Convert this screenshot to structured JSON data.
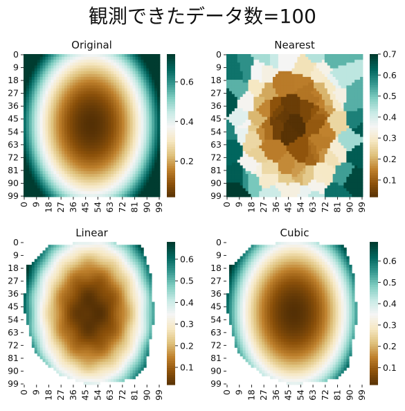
{
  "suptitle": "観測できたデータ数=100",
  "chart_data": [
    {
      "type": "heatmap",
      "title": "Original",
      "colormap": "BrBG",
      "grid_shape": [
        100,
        100
      ],
      "xticks": [
        "0",
        "9",
        "18",
        "27",
        "36",
        "45",
        "54",
        "63",
        "72",
        "81",
        "90",
        "99"
      ],
      "yticks": [
        "0",
        "9",
        "18",
        "27",
        "36",
        "45",
        "54",
        "63",
        "72",
        "81",
        "90",
        "99"
      ],
      "colorbar": {
        "range": [
          0.02,
          0.74
        ],
        "ticks": [
          0.2,
          0.4,
          0.6
        ]
      },
      "field": {
        "cx": 49.5,
        "cy": 49.5,
        "ax": 52,
        "ay": 68,
        "min": 0.02,
        "max": 0.74
      }
    },
    {
      "type": "heatmap",
      "title": "Nearest",
      "colormap": "BrBG",
      "grid_shape": [
        100,
        100
      ],
      "xticks": [
        "0",
        "9",
        "18",
        "27",
        "36",
        "45",
        "54",
        "63",
        "72",
        "81",
        "90",
        "99"
      ],
      "yticks": [
        "0",
        "9",
        "18",
        "27",
        "36",
        "45",
        "54",
        "63",
        "72",
        "81",
        "90",
        "99"
      ],
      "colorbar": {
        "range": [
          0.02,
          0.7
        ],
        "ticks": [
          0.1,
          0.2,
          0.3,
          0.4,
          0.5,
          0.6,
          0.7
        ]
      },
      "field": {
        "cx": 49.5,
        "cy": 49.5,
        "ax": 52,
        "ay": 68,
        "min": 0.02,
        "max": 0.7
      }
    },
    {
      "type": "heatmap",
      "title": "Linear",
      "colormap": "BrBG",
      "grid_shape": [
        100,
        100
      ],
      "xticks": [
        "0",
        "9",
        "18",
        "27",
        "36",
        "45",
        "54",
        "63",
        "72",
        "81",
        "90",
        "99"
      ],
      "yticks": [
        "0",
        "9",
        "18",
        "27",
        "36",
        "45",
        "54",
        "63",
        "72",
        "81",
        "90",
        "99"
      ],
      "colorbar": {
        "range": [
          0.02,
          0.68
        ],
        "ticks": [
          0.1,
          0.2,
          0.3,
          0.4,
          0.5,
          0.6
        ]
      },
      "field": {
        "cx": 49.5,
        "cy": 49.5,
        "ax": 52,
        "ay": 68,
        "min": 0.02,
        "max": 0.68
      }
    },
    {
      "type": "heatmap",
      "title": "Cubic",
      "colormap": "BrBG",
      "grid_shape": [
        100,
        100
      ],
      "xticks": [
        "0",
        "9",
        "18",
        "27",
        "36",
        "45",
        "54",
        "63",
        "72",
        "81",
        "90",
        "99"
      ],
      "yticks": [
        "0",
        "9",
        "18",
        "27",
        "36",
        "45",
        "54",
        "63",
        "72",
        "81",
        "90",
        "99"
      ],
      "colorbar": {
        "range": [
          0.02,
          0.69
        ],
        "ticks": [
          0.1,
          0.2,
          0.3,
          0.4,
          0.5,
          0.6
        ]
      },
      "field": {
        "cx": 49.5,
        "cy": 49.5,
        "ax": 52,
        "ay": 68,
        "min": 0.02,
        "max": 0.69
      }
    }
  ]
}
